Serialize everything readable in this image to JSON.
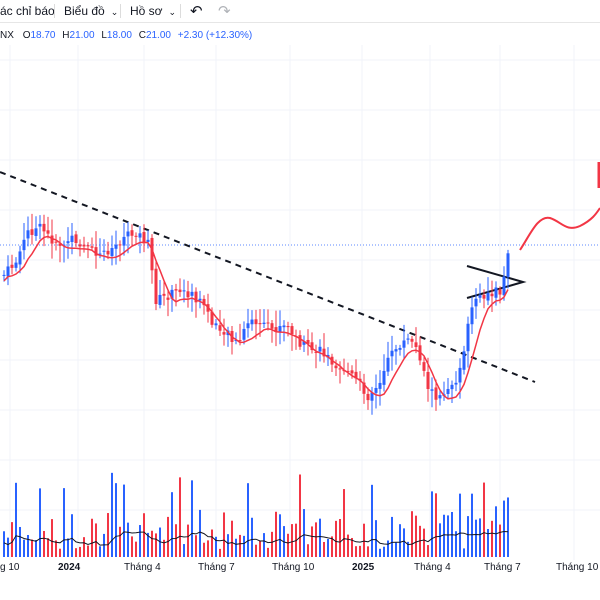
{
  "toolbar": {
    "indicators_label": "ác chỉ báo",
    "chart_type_label": "Biểu đồ",
    "profile_label": "Hồ sơ",
    "undo_icon": "undo-icon",
    "redo_icon": "redo-icon"
  },
  "legend": {
    "symbol": "NX",
    "open_key": "O",
    "open": "18.70",
    "high_key": "H",
    "high": "21.00",
    "low_key": "L",
    "low": "18.00",
    "close_key": "C",
    "close": "21.00",
    "change": "+2.30 (+12.30%)"
  },
  "colors": {
    "up": "#2962ff",
    "down": "#f23645",
    "ma": "#f23645",
    "vol_ma": "#131722"
  },
  "chart_data": {
    "type": "candlestick",
    "x_axis_labels": [
      {
        "text": "g 10",
        "bold": false
      },
      {
        "text": "2024",
        "bold": true
      },
      {
        "text": "Tháng 4",
        "bold": false
      },
      {
        "text": "Tháng 7",
        "bold": false
      },
      {
        "text": "Tháng 10",
        "bold": false
      },
      {
        "text": "2025",
        "bold": true
      },
      {
        "text": "Tháng 4",
        "bold": false
      },
      {
        "text": "Tháng 7",
        "bold": false
      },
      {
        "text": "Tháng 10",
        "bold": false
      }
    ],
    "last_price": {
      "open": 18.7,
      "high": 21.0,
      "low": 18.0,
      "close": 21.0,
      "change": 2.3,
      "change_pct": 12.3
    },
    "drawings": [
      "descending-trendline",
      "symmetrical-triangle",
      "projected-path"
    ]
  }
}
